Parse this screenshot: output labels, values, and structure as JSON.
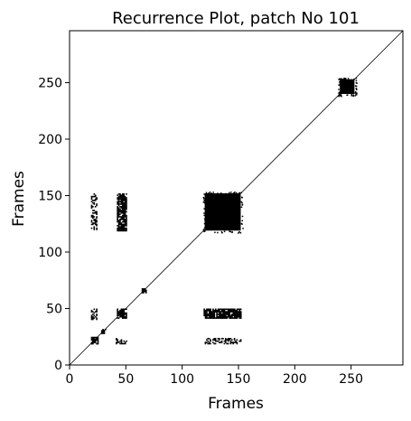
{
  "chart_data": {
    "type": "heatmap",
    "title": "Recurrence Plot, patch No 101",
    "xlabel": "Frames",
    "ylabel": "Frames",
    "xlim": [
      0,
      296
    ],
    "ylim": [
      0,
      296
    ],
    "x_ticks": [
      0,
      50,
      100,
      150,
      200,
      250
    ],
    "y_ticks": [
      0,
      50,
      100,
      150,
      200,
      250
    ],
    "grid": false,
    "colors": {
      "recurrent": "#000000",
      "background": "#ffffff"
    },
    "diagonal": {
      "from": 0,
      "to": 296
    },
    "recurrence_regions": [
      {
        "x": [
          120,
          152
        ],
        "y": [
          119,
          152
        ],
        "density": "solid"
      },
      {
        "x": [
          240,
          253
        ],
        "y": [
          240,
          253
        ],
        "density": "solid"
      },
      {
        "x": [
          42,
          50
        ],
        "y": [
          119,
          152
        ],
        "density": "dense"
      },
      {
        "x": [
          119,
          152
        ],
        "y": [
          42,
          50
        ],
        "density": "dense"
      },
      {
        "x": [
          19,
          24
        ],
        "y": [
          120,
          152
        ],
        "density": "sparse"
      },
      {
        "x": [
          120,
          152
        ],
        "y": [
          19,
          24
        ],
        "density": "sparse"
      },
      {
        "x": [
          41,
          50
        ],
        "y": [
          19,
          24
        ],
        "density": "sparse"
      },
      {
        "x": [
          19,
          24
        ],
        "y": [
          41,
          50
        ],
        "density": "sparse"
      },
      {
        "x": [
          42,
          50
        ],
        "y": [
          42,
          50
        ],
        "density": "dense"
      },
      {
        "x": [
          19,
          25
        ],
        "y": [
          19,
          25
        ],
        "density": "dense"
      },
      {
        "x": [
          28,
          32
        ],
        "y": [
          28,
          32
        ],
        "density": "dense"
      },
      {
        "x": [
          64,
          68
        ],
        "y": [
          64,
          68
        ],
        "density": "dense"
      }
    ]
  }
}
